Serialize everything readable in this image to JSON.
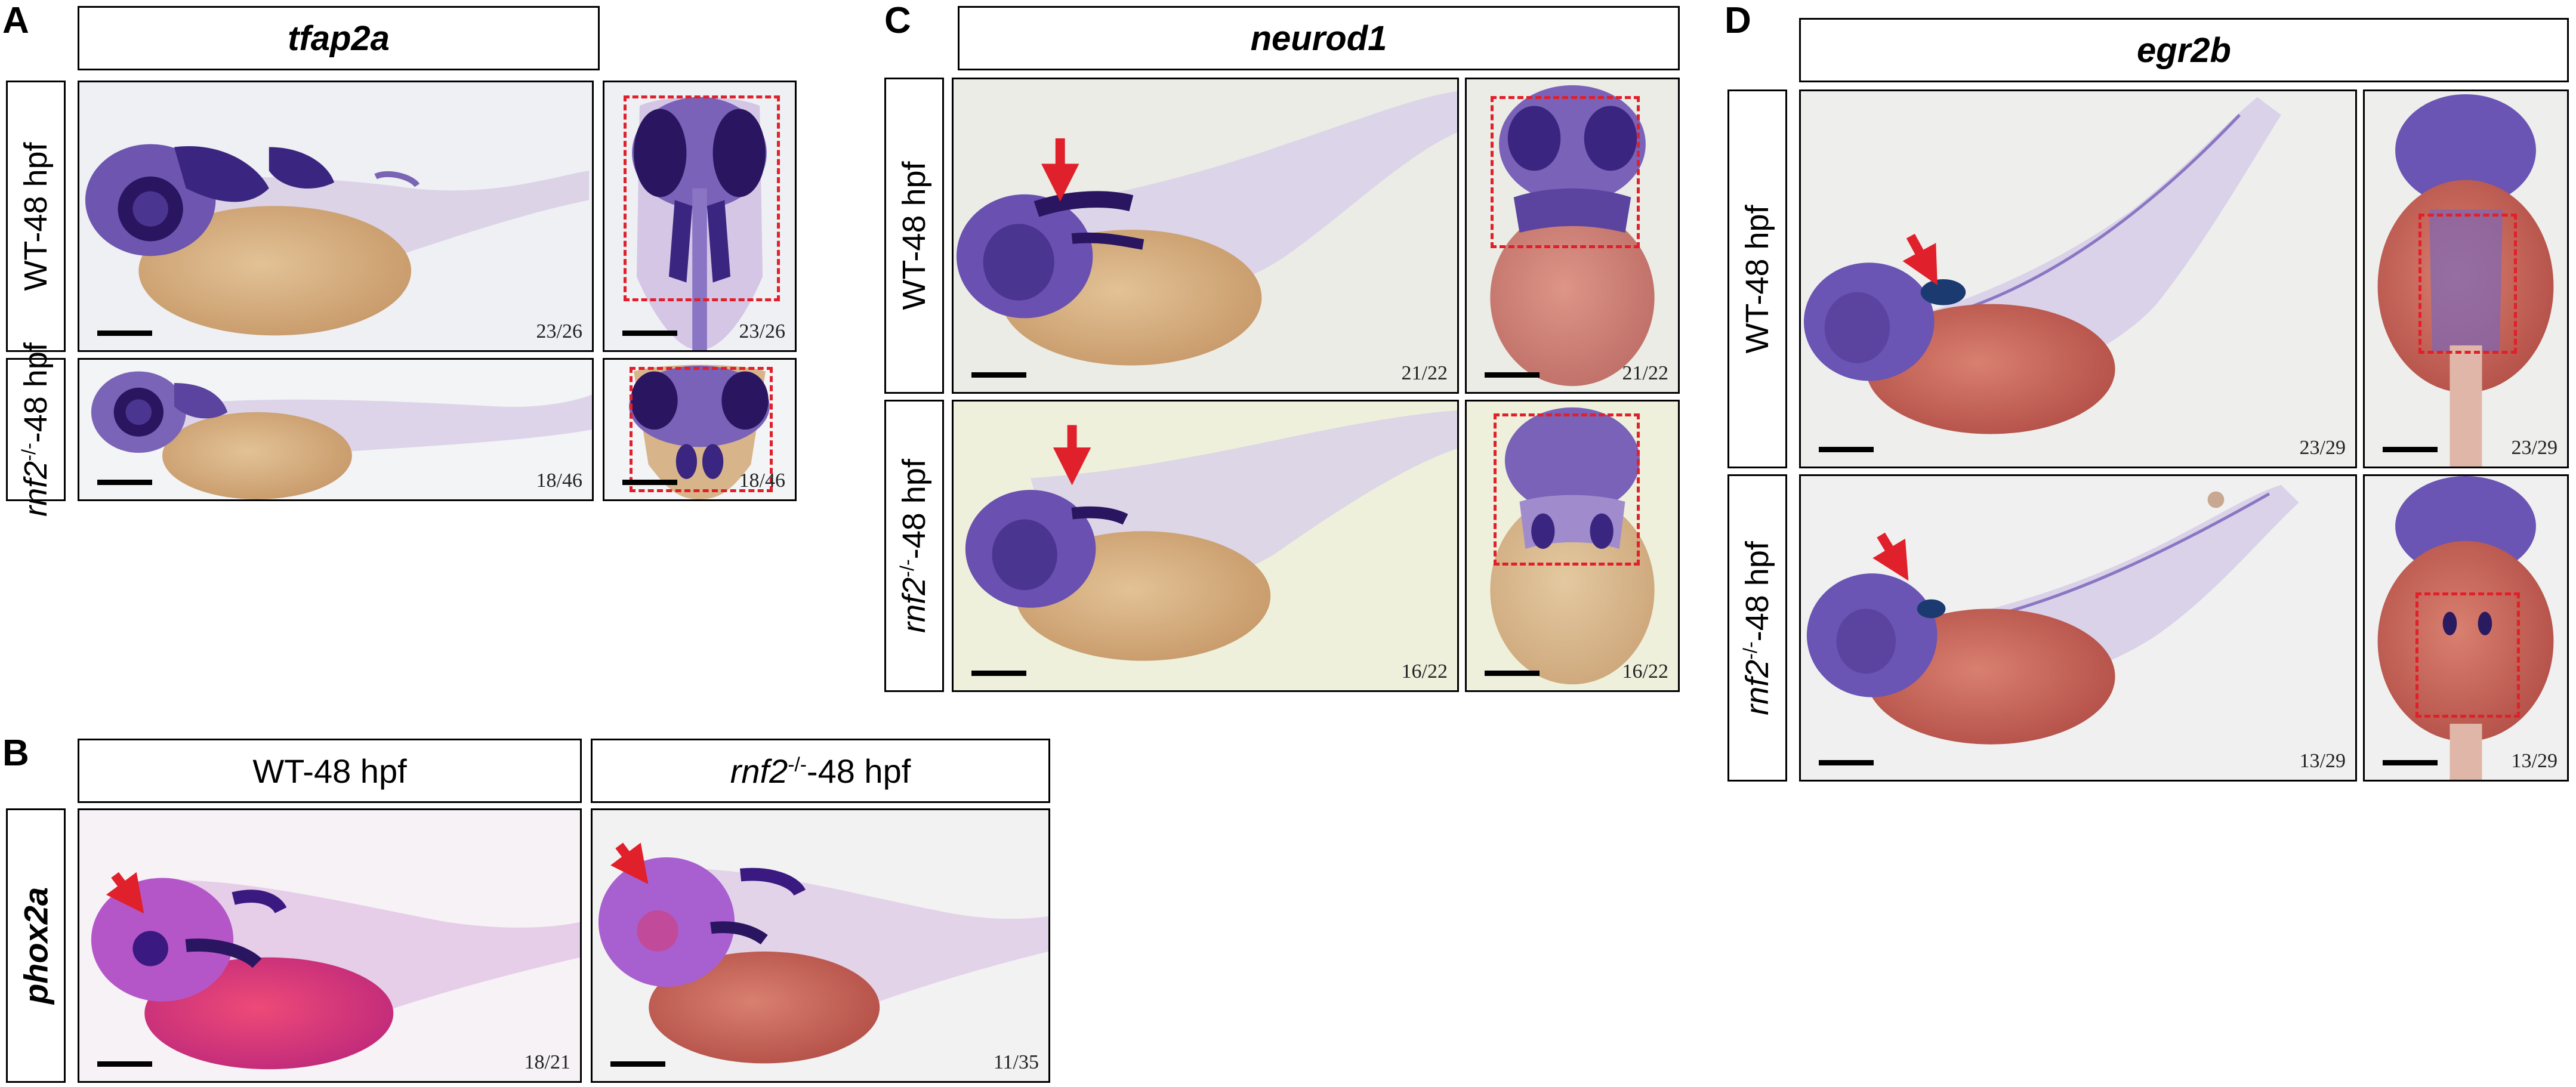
{
  "panels": {
    "A": {
      "letter": "A",
      "gene": "tfap2a",
      "rows": [
        {
          "label_html": "WT-48 hpf",
          "lateral_count": "23/26",
          "dorsal_count": "23/26"
        },
        {
          "label_html": "<i>rnf2</i><sup>-/-</sup>-48 hpf",
          "lateral_count": "18/46",
          "dorsal_count": "18/46"
        }
      ]
    },
    "B": {
      "letter": "B",
      "gene": "phox2a",
      "columns": [
        {
          "title_html": "WT-48 hpf",
          "count": "18/21"
        },
        {
          "title_html": "<i>rnf2</i><sup>-/-</sup>-48 hpf",
          "count": "11/35"
        }
      ]
    },
    "C": {
      "letter": "C",
      "gene": "neurod1",
      "rows": [
        {
          "label_html": "WT-48 hpf",
          "lateral_count": "21/22",
          "dorsal_count": "21/22"
        },
        {
          "label_html": "<i>rnf2</i><sup>-/-</sup>-48 hpf",
          "lateral_count": "16/22",
          "dorsal_count": "16/22"
        }
      ]
    },
    "D": {
      "letter": "D",
      "gene": "egr2b",
      "rows": [
        {
          "label_html": "WT-48 hpf",
          "lateral_count": "23/29",
          "dorsal_count": "23/29"
        },
        {
          "label_html": "<i>rnf2</i><sup>-/-</sup>-48 hpf",
          "lateral_count": "13/29",
          "dorsal_count": "13/29"
        }
      ]
    }
  },
  "colors": {
    "stain": "#5a3c9e",
    "stain_dark": "#2a1560",
    "yolk_tan": "#d8b48a",
    "yolk_red": "#c8605a",
    "phox_pink": "#c040c8",
    "phox_yolk": "#e0406a",
    "annotation_red": "#e0202a",
    "background_pale": "#f4f2ec"
  }
}
